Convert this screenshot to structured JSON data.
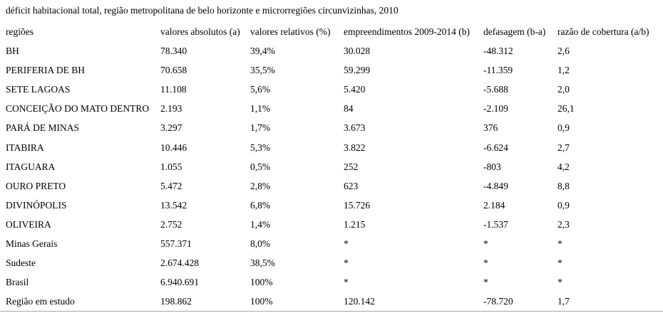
{
  "page": {
    "title": "déficit habitacional total, região metropolitana de belo horizonte e microrregiões circunvizinhas, 2010"
  },
  "table": {
    "columns": [
      "regiões",
      "valores absolutos (a)",
      "valores relativos (%)",
      "empreendimentos 2009-2014 (b)",
      "defasagem (b-a)",
      "razão de cobertura (a/b)"
    ],
    "rows": [
      [
        "BH",
        "78.340",
        "39,4%",
        "30.028",
        "-48.312",
        "2,6"
      ],
      [
        "PERIFERIA DE BH",
        "70.658",
        "35,5%",
        "59.299",
        "-11.359",
        "1,2"
      ],
      [
        "SETE LAGOAS",
        "11.108",
        "5,6%",
        "5.420",
        "-5.688",
        "2,0"
      ],
      [
        "CONCEIÇÃO DO MATO DENTRO",
        "2.193",
        "1,1%",
        "84",
        "-2.109",
        "26,1"
      ],
      [
        "PARÁ DE MINAS",
        "3.297",
        "1,7%",
        "3.673",
        "376",
        "0,9"
      ],
      [
        "ITABIRA",
        "10.446",
        "5,3%",
        "3.822",
        "-6.624",
        "2,7"
      ],
      [
        "ITAGUARA",
        "1.055",
        "0,5%",
        "252",
        "-803",
        "4,2"
      ],
      [
        "OURO PRETO",
        "5.472",
        "2,8%",
        "623",
        "-4.849",
        "8,8"
      ],
      [
        "DIVINÓPOLIS",
        "13.542",
        "6,8%",
        "15.726",
        "2.184",
        "0,9"
      ],
      [
        "OLIVEIRA",
        "2.752",
        "1,4%",
        "1.215",
        "-1.537",
        "2,3"
      ],
      [
        "Minas Gerais",
        "557.371",
        "8,0%",
        "*",
        "*",
        "*"
      ],
      [
        "Sudeste",
        "2.674.428",
        "38,5%",
        "*",
        "*",
        "*"
      ],
      [
        "Brasil",
        "6.940.691",
        "100%",
        "*",
        "*",
        "*"
      ],
      [
        "Região em estudo",
        "198.862",
        "100%",
        "120.142",
        "-78.720",
        "1,7"
      ]
    ]
  },
  "colors": {
    "text": "#000000",
    "background": "#ffffff",
    "bottom_rule": "#a6a6a6"
  }
}
